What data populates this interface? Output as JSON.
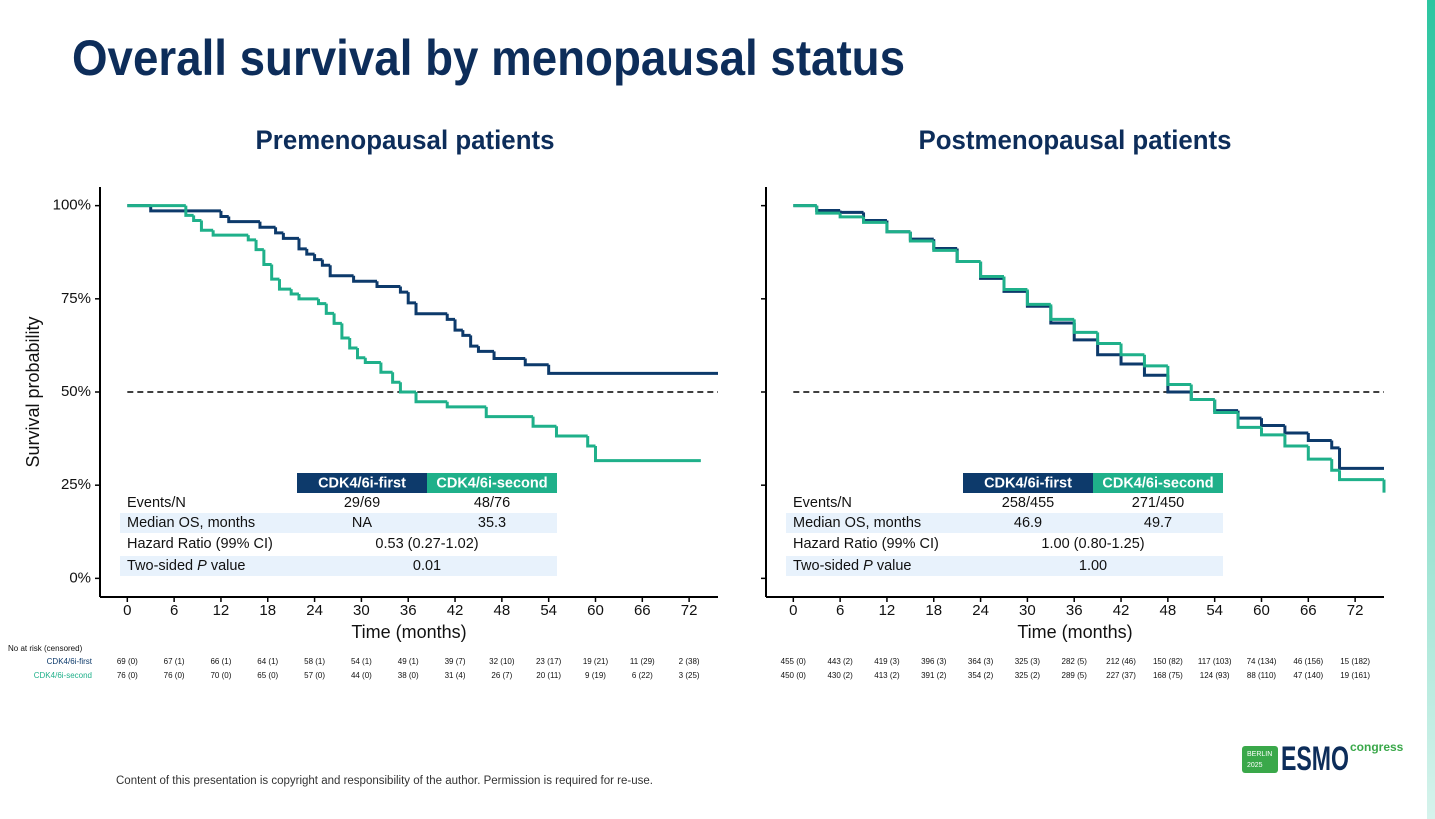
{
  "title": "Overall survival by menopausal status",
  "footer": "Content of this presentation is copyright and responsibility of the author. Permission is required for re-use.",
  "logo": {
    "city": "BERLIN",
    "year": "2025",
    "name": "ESMO",
    "event": "congress"
  },
  "chart_data": [
    {
      "type": "step",
      "title": "Premenopausal patients",
      "xlabel": "Time (months)",
      "ylabel": "Survival probability",
      "xlim": [
        -3.5,
        75.7
      ],
      "xticks": [
        0,
        6,
        12,
        18,
        24,
        30,
        36,
        42,
        48,
        54,
        60,
        66,
        72
      ],
      "ylim": [
        -5,
        105
      ],
      "yticks": [
        {
          "value": 0,
          "label": "0%"
        },
        {
          "value": 25,
          "label": "25%"
        },
        {
          "value": 50,
          "label": "50%"
        },
        {
          "value": 75,
          "label": "75%"
        },
        {
          "value": 100,
          "label": "100%"
        }
      ],
      "hline": 50,
      "series": [
        {
          "name": "CDK4/6i-first",
          "color": "#0d3a6b",
          "x": [
            0,
            3,
            12,
            13,
            17,
            19,
            20,
            22,
            23,
            24,
            25,
            26,
            29,
            32,
            35,
            36,
            37,
            41,
            42,
            43,
            44,
            45,
            47,
            51,
            54,
            75.7
          ],
          "values": [
            100,
            98.6,
            97.1,
            95.7,
            94.2,
            92.7,
            91.2,
            88.4,
            87,
            85.5,
            84,
            81.2,
            79.7,
            78.3,
            76.8,
            73.9,
            71,
            69.5,
            66.6,
            65.2,
            62.3,
            60.9,
            59,
            57.3,
            55,
            55
          ]
        },
        {
          "name": "CDK4/6i-second",
          "color": "#1fb08a",
          "x": [
            0,
            7.5,
            8.5,
            9.5,
            11,
            15.5,
            16.5,
            17.5,
            18.5,
            19.5,
            21,
            22,
            24.5,
            25.5,
            26.5,
            27.5,
            28.5,
            29.5,
            30.5,
            32.5,
            34,
            35,
            37,
            41,
            46,
            52,
            55,
            59,
            60,
            73.5
          ],
          "values": [
            100,
            97.4,
            96,
            93.4,
            92.1,
            90.8,
            88.2,
            84.2,
            80.3,
            77.6,
            76.3,
            75,
            73.7,
            71.1,
            68.4,
            64.5,
            61.8,
            59.2,
            57.9,
            55.3,
            52.6,
            50,
            47.4,
            46,
            43.4,
            40.8,
            38.2,
            35.5,
            31.6,
            31.6
          ]
        }
      ],
      "stats": [
        {
          "label": "Events/N",
          "values": [
            "29/69",
            "48/76"
          ]
        },
        {
          "label": "Median OS, months",
          "values": [
            "NA",
            "35.3"
          ]
        },
        {
          "label": "Hazard Ratio (99% CI)",
          "value": "0.53 (0.27-1.02)"
        },
        {
          "label": [
            "Two-sided ",
            "P",
            " value"
          ],
          "value": "0.01"
        }
      ],
      "risk_title": "No at risk (censored)",
      "at_risk": [
        [
          "69 (0)",
          "67 (1)",
          "66 (1)",
          "64 (1)",
          "58 (1)",
          "54 (1)",
          "49 (1)",
          "39 (7)",
          "32 (10)",
          "23 (17)",
          "19 (21)",
          "11 (29)",
          "2 (38)"
        ],
        [
          "76 (0)",
          "76 (0)",
          "70 (0)",
          "65 (0)",
          "57 (0)",
          "44 (0)",
          "38 (0)",
          "31 (4)",
          "26 (7)",
          "20 (11)",
          "9 (19)",
          "6 (22)",
          "3 (25)"
        ]
      ]
    },
    {
      "type": "step",
      "title": "Postmenopausal patients",
      "xlabel": "Time (months)",
      "xlim": [
        -3.5,
        75.7
      ],
      "xticks": [
        0,
        6,
        12,
        18,
        24,
        30,
        36,
        42,
        48,
        54,
        60,
        66,
        72
      ],
      "ylim": [
        -5,
        105
      ],
      "yticks": [
        0,
        25,
        50,
        75,
        100
      ],
      "ytick_labels": false,
      "hline": 50,
      "series": [
        {
          "name": "CDK4/6i-first",
          "color": "#0d3a6b",
          "x": [
            0,
            3,
            6,
            9,
            12,
            15,
            18,
            21,
            24,
            27,
            30,
            33,
            36,
            39,
            42,
            45,
            48,
            51,
            54,
            57,
            60,
            63,
            66,
            69,
            70,
            75.7
          ],
          "values": [
            100,
            98.7,
            98.2,
            96,
            93,
            91,
            88.5,
            85,
            80.5,
            77,
            73,
            68.5,
            64,
            60,
            57.5,
            54.5,
            50,
            48,
            45,
            43,
            41,
            39,
            37,
            35,
            29.5,
            29.5
          ]
        },
        {
          "name": "CDK4/6i-second",
          "color": "#1fb08a",
          "x": [
            0,
            3,
            6,
            9,
            12,
            15,
            18,
            21,
            24,
            27,
            30,
            33,
            36,
            39,
            42,
            45,
            48,
            51,
            54,
            57,
            60,
            63,
            66,
            69,
            70,
            75.5,
            75.7
          ],
          "values": [
            100,
            98,
            97,
            95.5,
            93,
            90.5,
            88,
            85,
            81,
            77.5,
            73.5,
            69.5,
            66,
            63,
            60,
            57,
            52,
            48,
            44.5,
            40.5,
            38.5,
            35.5,
            32,
            29,
            26.5,
            26.5,
            23
          ]
        }
      ],
      "stats": [
        {
          "label": "Events/N",
          "values": [
            "258/455",
            "271/450"
          ]
        },
        {
          "label": "Median OS, months",
          "values": [
            "46.9",
            "49.7"
          ]
        },
        {
          "label": "Hazard Ratio (99% CI)",
          "value": "1.00 (0.80-1.25)"
        },
        {
          "label": [
            "Two-sided ",
            "P",
            " value"
          ],
          "value": "1.00"
        }
      ],
      "at_risk": [
        [
          "455 (0)",
          "443 (2)",
          "419 (3)",
          "396 (3)",
          "364 (3)",
          "325 (3)",
          "282 (5)",
          "212 (46)",
          "150 (82)",
          "117 (103)",
          "74 (134)",
          "46 (156)",
          "15 (182)"
        ],
        [
          "450 (0)",
          "430 (2)",
          "413 (2)",
          "391 (2)",
          "354 (2)",
          "325 (2)",
          "289 (5)",
          "227 (37)",
          "168 (75)",
          "124 (93)",
          "88 (110)",
          "47 (140)",
          "19 (161)"
        ]
      ]
    }
  ]
}
